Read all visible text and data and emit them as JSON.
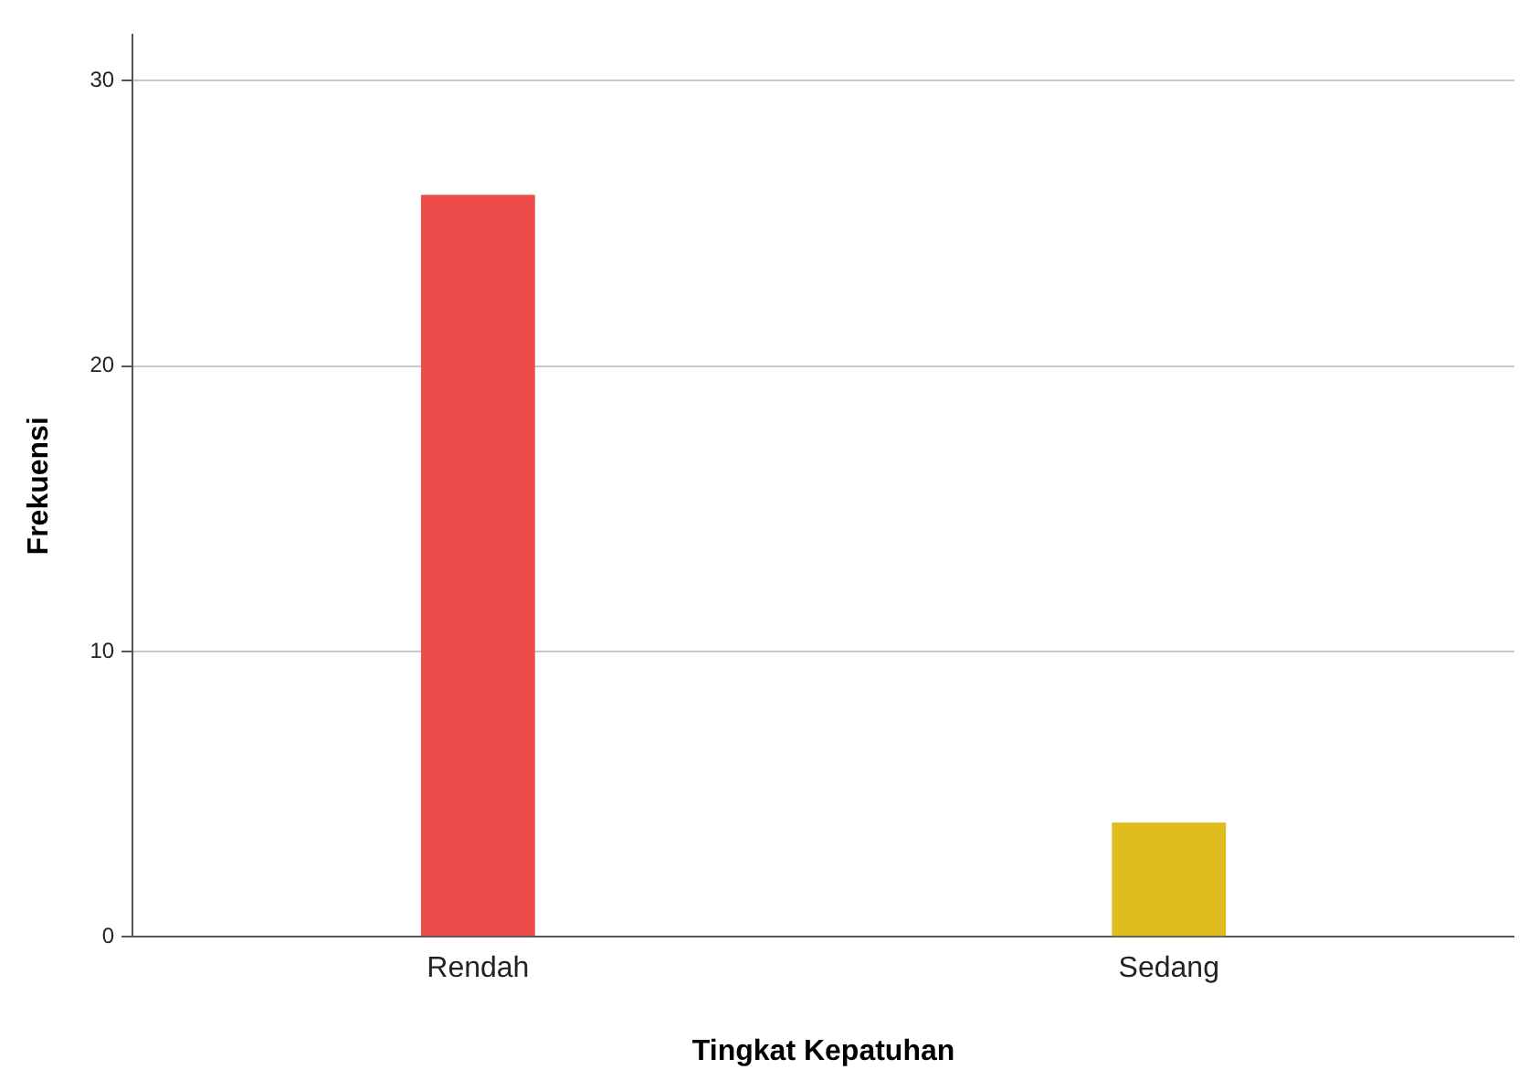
{
  "chart_data": {
    "type": "bar",
    "xlabel": "Tingkat Kepatuhan",
    "ylabel": "Frekuensi",
    "categories": [
      "Rendah",
      "Sedang"
    ],
    "values": [
      26,
      4
    ],
    "colors": [
      "#ee4b4b",
      "#e1bc1f"
    ],
    "ylim": [
      0,
      31.6
    ],
    "yticks": [
      0,
      10,
      20,
      30
    ],
    "grid": "y",
    "legend": false
  }
}
